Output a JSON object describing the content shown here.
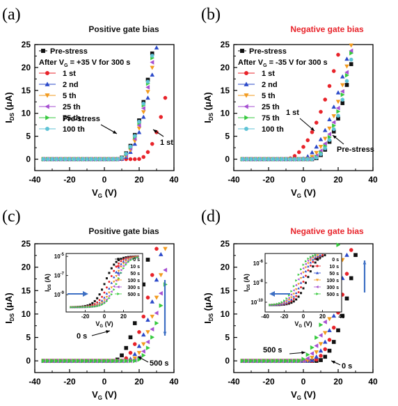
{
  "colors": {
    "black": "#111111",
    "red": "#e8232a",
    "blue": "#2b49c9",
    "orange": "#f29a1e",
    "purple": "#a64fd1",
    "green": "#36c93e",
    "cyan": "#5fc3d6",
    "arrow": "#3d6fc4",
    "title_pos": "#111111",
    "title_neg": "#e8232a"
  },
  "chart_data": [
    {
      "panel_label": "(a)",
      "title": "Positive gate bias",
      "type": "scatter",
      "xlabel": "V",
      "xlabel_sub": "G",
      "xlabel_unit": " (V)",
      "ylabel": "I",
      "ylabel_sub": "DS",
      "ylabel_unit": " (μA)",
      "xlim": [
        -40,
        40
      ],
      "ylim": [
        -2.5,
        25
      ],
      "xticks": [
        "-40",
        "-20",
        "0",
        "20",
        "40"
      ],
      "yticks": [
        "0",
        "5",
        "10",
        "15",
        "20",
        "25"
      ],
      "legend_header": "After V",
      "legend_header_sub": "G",
      "legend_header_rest": " = +35 V for 300 s",
      "series": [
        {
          "name": "Pre-stress",
          "color": "black",
          "marker": "square",
          "vth": 7,
          "k": 0.03,
          "n": 2.2
        },
        {
          "name": "1 st",
          "color": "red",
          "marker": "circle",
          "vth": 19,
          "k": 0.03,
          "n": 2.2
        },
        {
          "name": "2 nd",
          "color": "blue",
          "marker": "tri_up",
          "vth": 9,
          "k": 0.03,
          "n": 2.2
        },
        {
          "name": "5 th",
          "color": "orange",
          "marker": "tri_down",
          "vth": 8.3,
          "k": 0.03,
          "n": 2.2
        },
        {
          "name": "25 th",
          "color": "purple",
          "marker": "tri_left",
          "vth": 7.8,
          "k": 0.03,
          "n": 2.2
        },
        {
          "name": "75 th",
          "color": "green",
          "marker": "tri_right",
          "vth": 7.4,
          "k": 0.03,
          "n": 2.2
        },
        {
          "name": "100 th",
          "color": "cyan",
          "marker": "circle",
          "vth": 7.2,
          "k": 0.03,
          "n": 2.2
        }
      ],
      "annotations": [
        {
          "text": "Pre-stress"
        },
        {
          "text": "1 st"
        }
      ]
    },
    {
      "panel_label": "(b)",
      "title": "Negative gate bias",
      "type": "scatter",
      "xlabel": "V",
      "xlabel_sub": "G",
      "xlabel_unit": " (V)",
      "ylabel": "I",
      "ylabel_sub": "DS",
      "ylabel_unit": " (μA)",
      "xlim": [
        -40,
        40
      ],
      "ylim": [
        -2.5,
        25
      ],
      "xticks": [
        "-40",
        "-20",
        "0",
        "20",
        "40"
      ],
      "yticks": [
        "0",
        "5",
        "10",
        "15",
        "20",
        "25"
      ],
      "legend_header": "After V",
      "legend_header_sub": "G",
      "legend_header_rest": " = -35 V for 300 s",
      "series": [
        {
          "name": "Pre-stress",
          "color": "black",
          "marker": "square",
          "vth": 5,
          "k": 0.03,
          "n": 2.1
        },
        {
          "name": "1 st",
          "color": "red",
          "marker": "circle",
          "vth": -10,
          "k": 0.03,
          "n": 1.95
        },
        {
          "name": "2 nd",
          "color": "blue",
          "marker": "tri_up",
          "vth": -2,
          "k": 0.03,
          "n": 2.0
        },
        {
          "name": "5 th",
          "color": "orange",
          "marker": "tri_down",
          "vth": 1,
          "k": 0.03,
          "n": 2.05
        },
        {
          "name": "25 th",
          "color": "purple",
          "marker": "tri_left",
          "vth": 2.8,
          "k": 0.03,
          "n": 2.08
        },
        {
          "name": "75 th",
          "color": "green",
          "marker": "tri_right",
          "vth": 3.8,
          "k": 0.03,
          "n": 2.1
        },
        {
          "name": "100 th",
          "color": "cyan",
          "marker": "circle",
          "vth": 4.5,
          "k": 0.03,
          "n": 2.1
        }
      ],
      "annotations": [
        {
          "text": "1 st"
        },
        {
          "text": "Pre-stress"
        }
      ]
    },
    {
      "panel_label": "(c)",
      "title": "Positive gate bias",
      "type": "scatter",
      "xlabel": "V",
      "xlabel_sub": "G",
      "xlabel_unit": " (V)",
      "ylabel": "I",
      "ylabel_sub": "DS",
      "ylabel_unit": " (μA)",
      "xlim": [
        -40,
        40
      ],
      "ylim": [
        -2.5,
        25
      ],
      "xticks": [
        "-40",
        "-20",
        "0",
        "20",
        "40"
      ],
      "yticks": [
        "0",
        "5",
        "10",
        "15",
        "20",
        "25"
      ],
      "series": [
        {
          "name": "0 s",
          "color": "black",
          "marker": "square",
          "vth": 5,
          "k": 0.04,
          "n": 2.1
        },
        {
          "name": "10 s",
          "color": "red",
          "marker": "circle",
          "vth": 9,
          "k": 0.04,
          "n": 2.1
        },
        {
          "name": "50 s",
          "color": "blue",
          "marker": "tri_up",
          "vth": 12,
          "k": 0.04,
          "n": 2.1
        },
        {
          "name": "100 s",
          "color": "orange",
          "marker": "tri_down",
          "vth": 14,
          "k": 0.04,
          "n": 2.1
        },
        {
          "name": "300 s",
          "color": "purple",
          "marker": "tri_left",
          "vth": 16,
          "k": 0.04,
          "n": 2.1
        },
        {
          "name": "500 s",
          "color": "green",
          "marker": "tri_right",
          "vth": 17.5,
          "k": 0.04,
          "n": 2.1
        }
      ],
      "annotations": [
        {
          "text": "0 s"
        },
        {
          "text": "500 s"
        }
      ],
      "inset": {
        "xlabel": "V",
        "xlabel_sub": "G",
        "xlabel_unit": " (V)",
        "ylabel": "I",
        "ylabel_sub": "DS",
        "ylabel_unit": " (A)",
        "xlim": [
          -40,
          40
        ],
        "xticks": [
          "-20",
          "0",
          "20"
        ],
        "yticks": [
          {
            "base": "10",
            "exp": "-5",
            "v": -5
          },
          {
            "base": "10",
            "exp": "-7",
            "v": -7
          },
          {
            "base": "10",
            "exp": "-9",
            "v": -9
          }
        ],
        "ylim": [
          -10.8,
          -4.7
        ]
      }
    },
    {
      "panel_label": "(d)",
      "title": "Negative gate bias",
      "type": "scatter",
      "xlabel": "V",
      "xlabel_sub": "G",
      "xlabel_unit": " (V)",
      "ylabel": "I",
      "ylabel_sub": "DS",
      "ylabel_unit": " (μA)",
      "xlim": [
        -40,
        40
      ],
      "ylim": [
        -2.5,
        25
      ],
      "xticks": [
        "-40",
        "-20",
        "0",
        "20",
        "40"
      ],
      "yticks": [
        "0",
        "5",
        "10",
        "15",
        "20",
        "25"
      ],
      "series": [
        {
          "name": "0 s",
          "color": "black",
          "marker": "square",
          "vth": 8,
          "k": 0.04,
          "n": 2.05
        },
        {
          "name": "10 s",
          "color": "red",
          "marker": "circle",
          "vth": 5,
          "k": 0.04,
          "n": 2.05
        },
        {
          "name": "50 s",
          "color": "blue",
          "marker": "tri_up",
          "vth": 3,
          "k": 0.04,
          "n": 2.05
        },
        {
          "name": "100 s",
          "color": "orange",
          "marker": "tri_down",
          "vth": 1,
          "k": 0.04,
          "n": 2.05
        },
        {
          "name": "300 s",
          "color": "purple",
          "marker": "tri_left",
          "vth": -1,
          "k": 0.04,
          "n": 2.05
        },
        {
          "name": "500 s",
          "color": "green",
          "marker": "tri_right",
          "vth": -3,
          "k": 0.04,
          "n": 2.05
        }
      ],
      "annotations": [
        {
          "text": "500 s"
        },
        {
          "text": "0 s"
        }
      ],
      "inset": {
        "xlabel": "V",
        "xlabel_sub": "G",
        "xlabel_unit": " (V)",
        "ylabel": "I",
        "ylabel_sub": "DS",
        "ylabel_unit": " (A)",
        "xlim": [
          -40,
          40
        ],
        "xticks": [
          "-40",
          "-20",
          "0",
          "20",
          "40"
        ],
        "yticks": [
          {
            "base": "10",
            "exp": "-6",
            "v": -6
          },
          {
            "base": "10",
            "exp": "-8",
            "v": -8
          },
          {
            "base": "10",
            "exp": "-10",
            "v": -10
          }
        ],
        "ylim": [
          -11,
          -5
        ]
      }
    }
  ]
}
